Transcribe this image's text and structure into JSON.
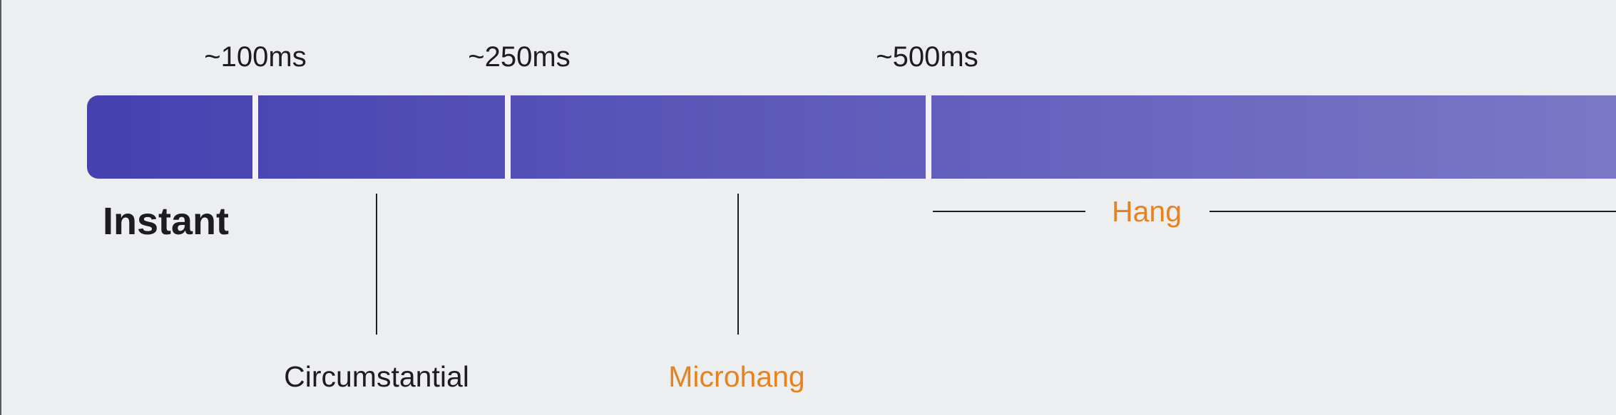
{
  "colors": {
    "background": "#edeef0",
    "bar_gradient_start": "#4541b0",
    "bar_gradient_end": "#7a78c6",
    "divider": "#f2f2f6",
    "text": "#1d1d1f",
    "accent": "#e8821e"
  },
  "ticks": [
    "~100ms",
    "~250ms",
    "~500ms"
  ],
  "categories": {
    "instant": "Instant",
    "circumstantial": "Circumstantial",
    "microhang": "Microhang",
    "hang": "Hang"
  }
}
